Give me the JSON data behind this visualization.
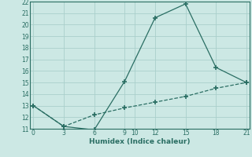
{
  "xlabel": "Humidex (Indice chaleur)",
  "line1_x": [
    0,
    3,
    6,
    9,
    12,
    15,
    18,
    21
  ],
  "line1_y": [
    13,
    11.2,
    10.9,
    15.1,
    20.6,
    21.8,
    16.3,
    15.0
  ],
  "line2_x": [
    0,
    3,
    6,
    9,
    12,
    15,
    18,
    21
  ],
  "line2_y": [
    13,
    11.2,
    12.2,
    12.8,
    13.3,
    13.8,
    14.5,
    15.0
  ],
  "line_color": "#2a6e63",
  "bg_color": "#cce8e4",
  "grid_color": "#aacfcb",
  "ylim": [
    11,
    22
  ],
  "xlim": [
    -0.3,
    21.3
  ],
  "yticks": [
    11,
    12,
    13,
    14,
    15,
    16,
    17,
    18,
    19,
    20,
    21,
    22
  ],
  "xticks": [
    0,
    3,
    6,
    9,
    10,
    12,
    15,
    18,
    21
  ],
  "tick_fontsize": 5.5,
  "xlabel_fontsize": 6.5
}
